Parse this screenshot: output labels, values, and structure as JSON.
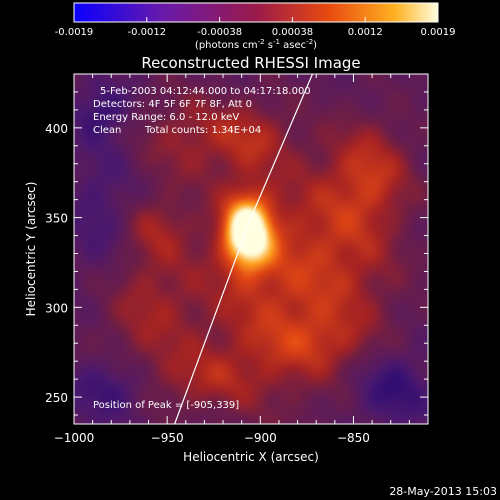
{
  "colorbar": {
    "ticks": [
      "-0.0019",
      "-0.0012",
      "-0.00038",
      "0.00038",
      "0.0012",
      "0.0019"
    ],
    "unit_main": "(photons cm",
    "unit_sup1": "-2",
    "unit_mid": " s",
    "unit_sup2": "-1",
    "unit_mid2": " asec",
    "unit_sup3": "-2",
    "unit_end": ")"
  },
  "title": "Reconstructed RHESSI Image",
  "annotations": {
    "line1": "5-Feb-2003 04:12:44.000 to 04:17:18.000",
    "line2": "Detectors: 4F 5F 6F 7F 8F, Att 0",
    "line3": "Energy Range: 6.0 - 12.0 keV",
    "line4a": "Clean",
    "line4b": "Total counts: 1.34E+04",
    "peak": "Position of Peak = [-905,339]"
  },
  "footer": {
    "timestamp": "28-May-2013 15:03"
  },
  "chart_data": {
    "type": "heatmap",
    "title": "Reconstructed RHESSI Image",
    "xlabel": "Heliocentric X (arcsec)",
    "ylabel": "Heliocentric Y (arcsec)",
    "xlim": [
      -1000,
      -810
    ],
    "ylim": [
      235,
      430
    ],
    "xticks": [
      -1000,
      -950,
      -900,
      -850
    ],
    "yticks": [
      250,
      300,
      350,
      400
    ],
    "xtick_labels": [
      "−1000",
      "−950",
      "−900",
      "−850"
    ],
    "ytick_labels": [
      "250",
      "300",
      "350",
      "400"
    ],
    "colorbar_range": [
      -0.0019,
      0.0019
    ],
    "peak": {
      "x": -905,
      "y": 339
    },
    "limb_line": [
      [
        -946,
        235
      ],
      [
        -905,
        350
      ],
      [
        -872,
        430
      ]
    ],
    "blobs": [
      {
        "x": -907,
        "y": 342,
        "sx": 9,
        "sy": 14,
        "amp": 1.0
      },
      {
        "x": -897,
        "y": 310,
        "sx": 25,
        "sy": 45,
        "amp": 0.35
      },
      {
        "x": -855,
        "y": 330,
        "sx": 22,
        "sy": 40,
        "amp": 0.32
      },
      {
        "x": -940,
        "y": 395,
        "sx": 18,
        "sy": 18,
        "amp": 0.25
      },
      {
        "x": -905,
        "y": 395,
        "sx": 15,
        "sy": 14,
        "amp": 0.28
      },
      {
        "x": -840,
        "y": 375,
        "sx": 15,
        "sy": 20,
        "amp": 0.3
      },
      {
        "x": -960,
        "y": 300,
        "sx": 20,
        "sy": 30,
        "amp": 0.28
      },
      {
        "x": -955,
        "y": 345,
        "sx": 12,
        "sy": 12,
        "amp": 0.2
      },
      {
        "x": -930,
        "y": 260,
        "sx": 22,
        "sy": 12,
        "amp": 0.22
      },
      {
        "x": -870,
        "y": 280,
        "sx": 20,
        "sy": 12,
        "amp": 0.2
      },
      {
        "x": -985,
        "y": 410,
        "sx": 10,
        "sy": 10,
        "amp": -0.25
      },
      {
        "x": -980,
        "y": 255,
        "sx": 15,
        "sy": 12,
        "amp": -0.28
      },
      {
        "x": -830,
        "y": 255,
        "sx": 15,
        "sy": 15,
        "amp": -0.28
      },
      {
        "x": -985,
        "y": 350,
        "sx": 12,
        "sy": 30,
        "amp": -0.18
      }
    ]
  }
}
